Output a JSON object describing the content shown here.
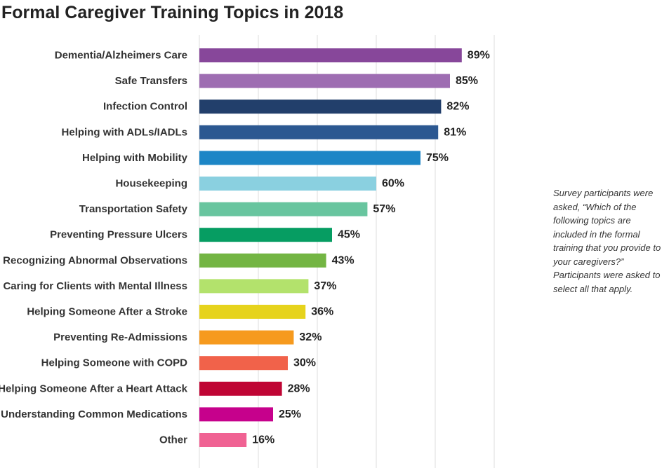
{
  "chart_data": {
    "type": "bar",
    "orientation": "horizontal",
    "title": "Formal Caregiver Training Topics in 2018",
    "xlabel": "",
    "ylabel": "",
    "xlim": [
      0,
      100
    ],
    "grid": true,
    "legend": "none",
    "value_suffix": "%",
    "categories": [
      "Dementia/Alzheimers Care",
      "Safe Transfers",
      "Infection Control",
      "Helping with ADLs/IADLs",
      "Helping with Mobility",
      "Housekeeping",
      "Transportation Safety",
      "Preventing Pressure Ulcers",
      "Recognizing Abnormal Observations",
      "Caring for Clients with Mental Illness",
      "Helping Someone After a Stroke",
      "Preventing Re-Admissions",
      "Helping Someone with COPD",
      "Helping Someone After a Heart Attack",
      "Understanding Common Medications",
      "Other"
    ],
    "values": [
      89,
      85,
      82,
      81,
      75,
      60,
      57,
      45,
      43,
      37,
      36,
      32,
      30,
      28,
      25,
      16
    ],
    "colors": [
      "#87479a",
      "#9e6db2",
      "#223f6b",
      "#2c5891",
      "#1d86c6",
      "#8ad0e0",
      "#68c59f",
      "#069d62",
      "#73b543",
      "#b3e26c",
      "#e6d31c",
      "#f69a1e",
      "#f1624a",
      "#bf0534",
      "#c6018c",
      "#f06293"
    ],
    "gridline_color": "#dddddd"
  },
  "annotation": "Survey participants were asked, “Which of the following topics are included in the formal training that you provide to your caregivers?” Participants were asked to select all that apply."
}
